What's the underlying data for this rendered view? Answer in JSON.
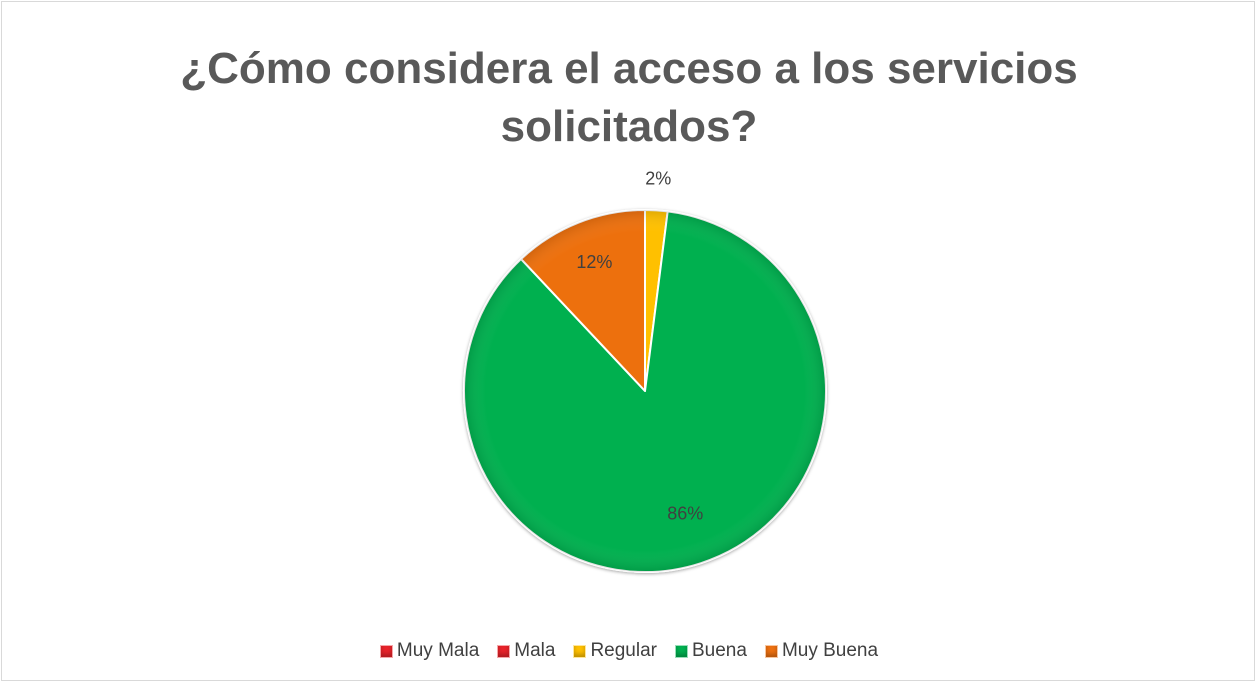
{
  "chart_data": {
    "type": "pie",
    "title": "¿Cómo considera el acceso a los servicios solicitados?",
    "categories": [
      "Muy Mala",
      "Mala",
      "Regular",
      "Buena",
      "Muy Buena"
    ],
    "values": [
      0,
      0,
      2,
      86,
      12
    ],
    "unit": "%",
    "data_labels": [
      "",
      "",
      "2%",
      "86%",
      "12%"
    ],
    "colors": [
      "#e8232a",
      "#e8232a",
      "#ffc000",
      "#00b050",
      "#ed7010"
    ],
    "legend_position": "bottom",
    "start_angle_deg": 0,
    "direction": "clockwise"
  }
}
